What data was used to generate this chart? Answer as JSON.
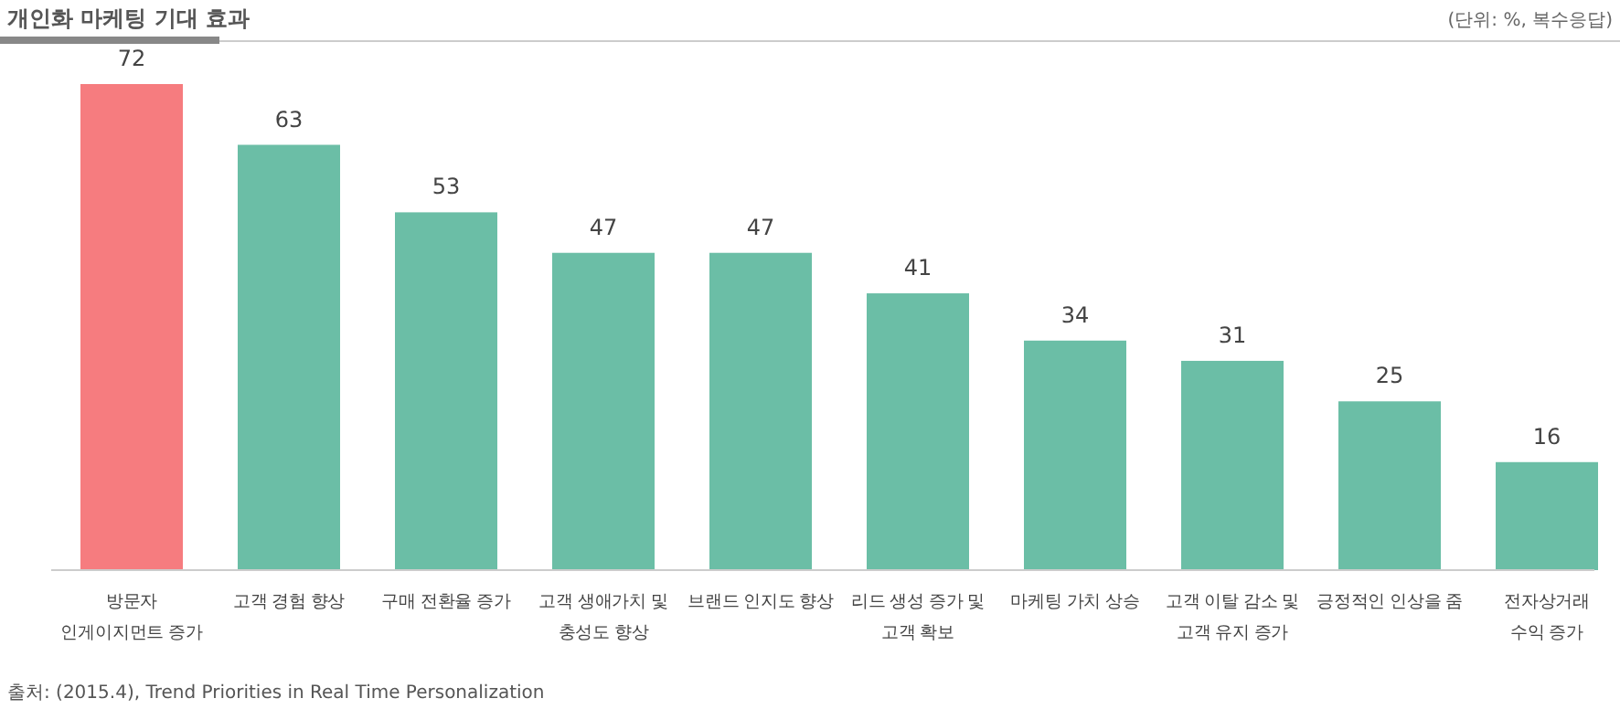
{
  "chart_data": {
    "type": "bar",
    "title": "개인화 마케팅 기대 효과",
    "subtitle": "(단위: %, 복수응답)",
    "categories": [
      "방문자\n인게이지먼트 증가",
      "고객 경험 향상",
      "구매 전환율 증가",
      "고객 생애가치 및\n충성도 향상",
      "브랜드 인지도 향상",
      "리드 생성 증가 및\n고객 확보",
      "마케팅 가치 상승",
      "고객 이탈 감소 및\n고객 유지 증가",
      "긍정적인 인상을 줌",
      "전자상거래\n수익 증가"
    ],
    "values": [
      72,
      63,
      53,
      47,
      47,
      41,
      34,
      31,
      25,
      16
    ],
    "colors": [
      "#f67c7f",
      "#6bbea6",
      "#6bbea6",
      "#6bbea6",
      "#6bbea6",
      "#6bbea6",
      "#6bbea6",
      "#6bbea6",
      "#6bbea6",
      "#6bbea6"
    ],
    "data_labels": true,
    "relative": false,
    "annotations": [
      "출처: (2015.4), Trend Priorities in Real Time Personalization"
    ]
  }
}
